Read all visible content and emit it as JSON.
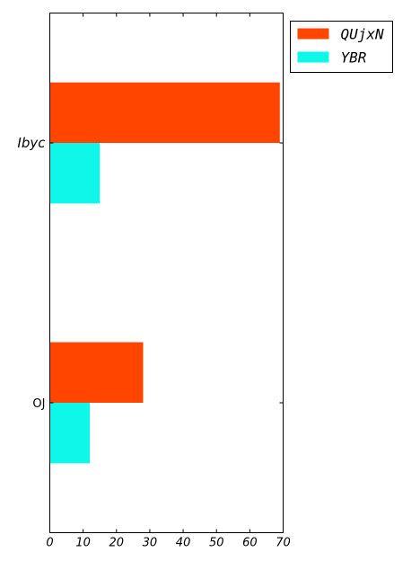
{
  "chart_data": {
    "type": "bar",
    "orientation": "horizontal",
    "categories": [
      "OJ",
      "Ibyc"
    ],
    "series": [
      {
        "name": "QUjxN",
        "values": [
          28,
          69
        ],
        "color": "#ff4500"
      },
      {
        "name": "YBR",
        "values": [
          12,
          15
        ],
        "color": "#0ef7e8"
      }
    ],
    "title": "",
    "xlabel": "",
    "ylabel": "",
    "xlim": [
      0,
      70
    ],
    "xticks": [
      0,
      10,
      20,
      30,
      40,
      50,
      60,
      70
    ],
    "grid": false,
    "legend": "outside-top-right"
  }
}
